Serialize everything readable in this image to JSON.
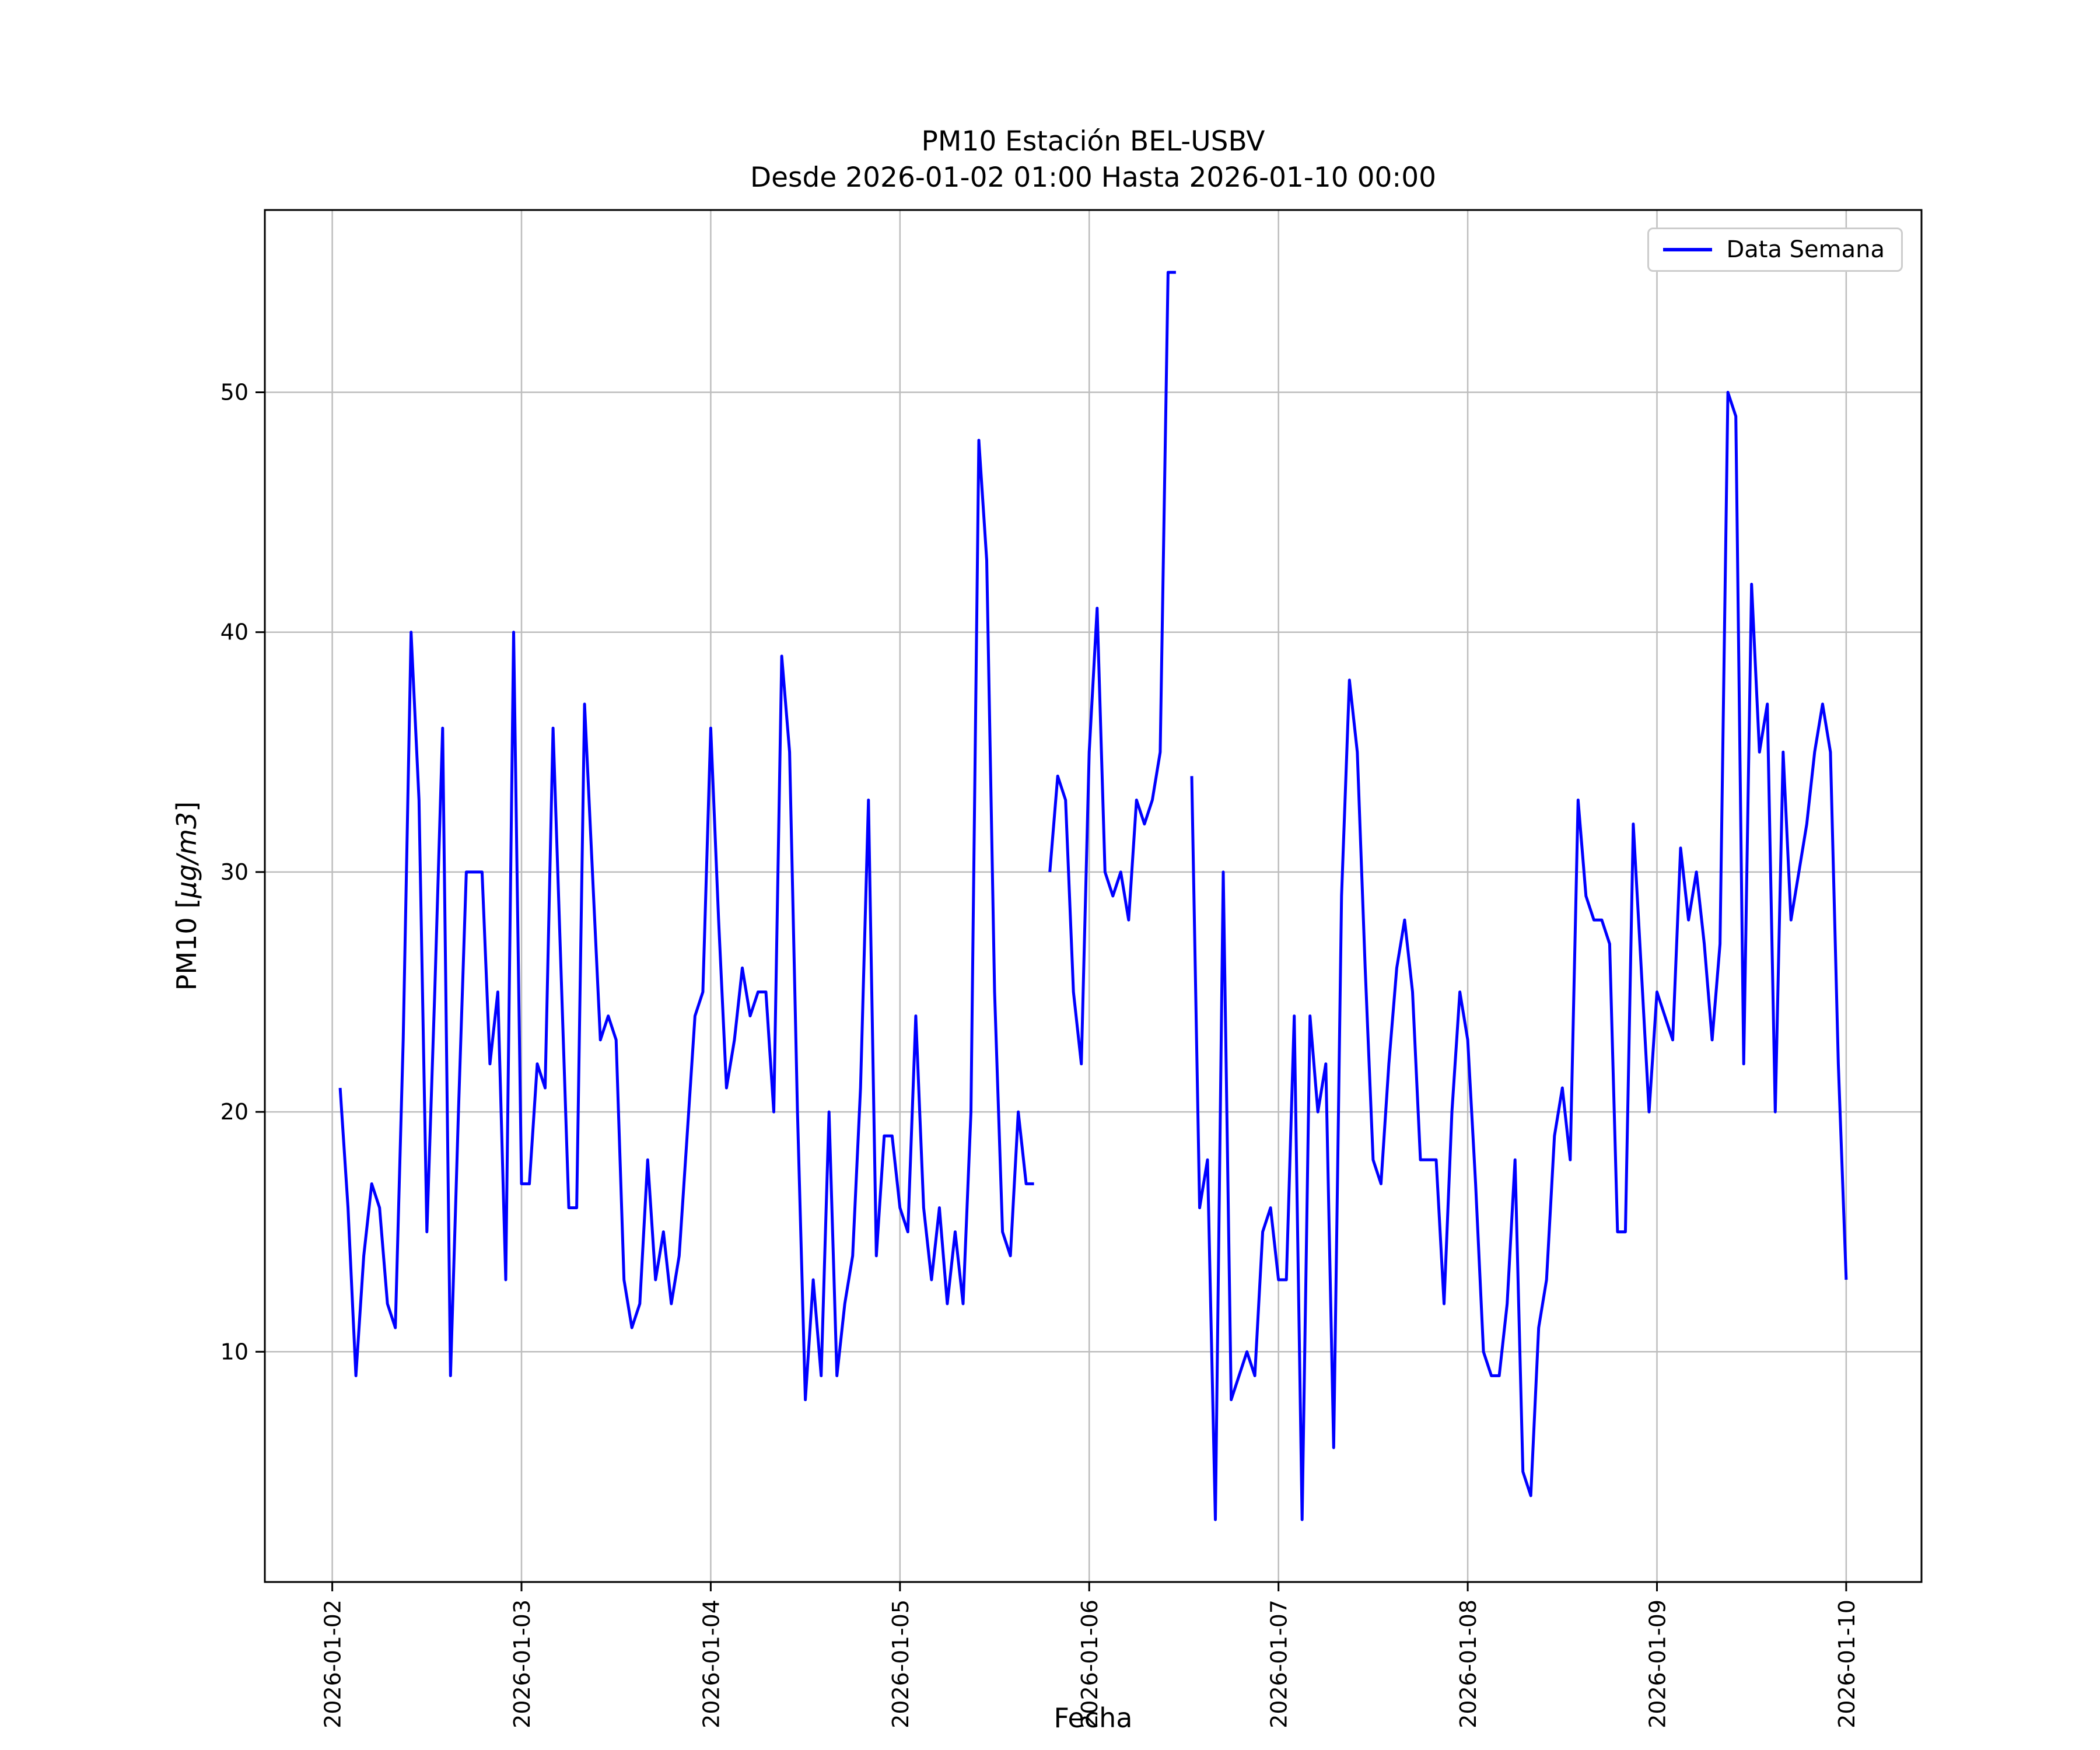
{
  "figure": {
    "title": "PM10 Estación BEL-USBV",
    "subtitle": "Desde 2026-01-02 01:00 Hasta 2026-01-10 00:00",
    "background": "#ffffff"
  },
  "chart_data": {
    "type": "line",
    "title": "PM10 Estación BEL-USBV",
    "subtitle": "Desde 2026-01-02 01:00 Hasta 2026-01-10 00:00",
    "xlabel": "Fecha",
    "ylabel": "PM10 [μg/m3]",
    "ylabel_parts": {
      "prefix": "PM10 [",
      "math": "μg/m3",
      "suffix": "]"
    },
    "x_start": "2026-01-02 01:00",
    "x_end": "2026-01-10 00:00",
    "x_interval_hours": 1,
    "x_tick_hours": [
      0,
      24,
      48,
      72,
      96,
      120,
      144,
      168,
      192
    ],
    "x_tick_labels": [
      "2026-01-02",
      "2026-01-03",
      "2026-01-04",
      "2026-01-05",
      "2026-01-06",
      "2026-01-07",
      "2026-01-08",
      "2026-01-09",
      "2026-01-10"
    ],
    "y_ticks": [
      10,
      20,
      30,
      40,
      50
    ],
    "xlim_hours": [
      -8.55,
      201.55
    ],
    "ylim": [
      0.4,
      57.6
    ],
    "grid": true,
    "grid_color": "#bdbdbd",
    "line_color": "#0000ff",
    "legend": {
      "label": "Data Semana",
      "position": "upper-right"
    },
    "series": [
      {
        "name": "Data Semana",
        "color": "#0000ff",
        "values": [
          21,
          16,
          9,
          14,
          17,
          16,
          12,
          11,
          23,
          40,
          33,
          15,
          25,
          36,
          9,
          20,
          30,
          30,
          30,
          22,
          25,
          13,
          40,
          17,
          17,
          22,
          21,
          36,
          26,
          16,
          16,
          37,
          30,
          23,
          24,
          23,
          13,
          11,
          12,
          18,
          13,
          15,
          12,
          14,
          19,
          24,
          25,
          36,
          28,
          21,
          23,
          26,
          24,
          25,
          25,
          20,
          39,
          35,
          20,
          8,
          13,
          9,
          20,
          9,
          12,
          14,
          21,
          33,
          14,
          19,
          19,
          16,
          15,
          24,
          16,
          13,
          16,
          12,
          15,
          12,
          20,
          48,
          43,
          25,
          15,
          14,
          20,
          17,
          17,
          null,
          30,
          34,
          33,
          25,
          22,
          35,
          41,
          30,
          29,
          30,
          28,
          33,
          32,
          33,
          35,
          55,
          55,
          null,
          34,
          16,
          18,
          3,
          30,
          8,
          9,
          10,
          9,
          15,
          16,
          13,
          13,
          24,
          3,
          24,
          20,
          22,
          6,
          29,
          38,
          35,
          26,
          18,
          17,
          22,
          26,
          28,
          25,
          18,
          18,
          18,
          12,
          20,
          25,
          23,
          17,
          10,
          9,
          9,
          12,
          18,
          5,
          4,
          11,
          13,
          19,
          21,
          18,
          33,
          29,
          28,
          28,
          27,
          15,
          15,
          32,
          26,
          20,
          25,
          24,
          23,
          31,
          28,
          30,
          27,
          23,
          27,
          50,
          49,
          22,
          42,
          35,
          37,
          20,
          35,
          28,
          30,
          32,
          35,
          37,
          35,
          22,
          13
        ]
      }
    ]
  }
}
